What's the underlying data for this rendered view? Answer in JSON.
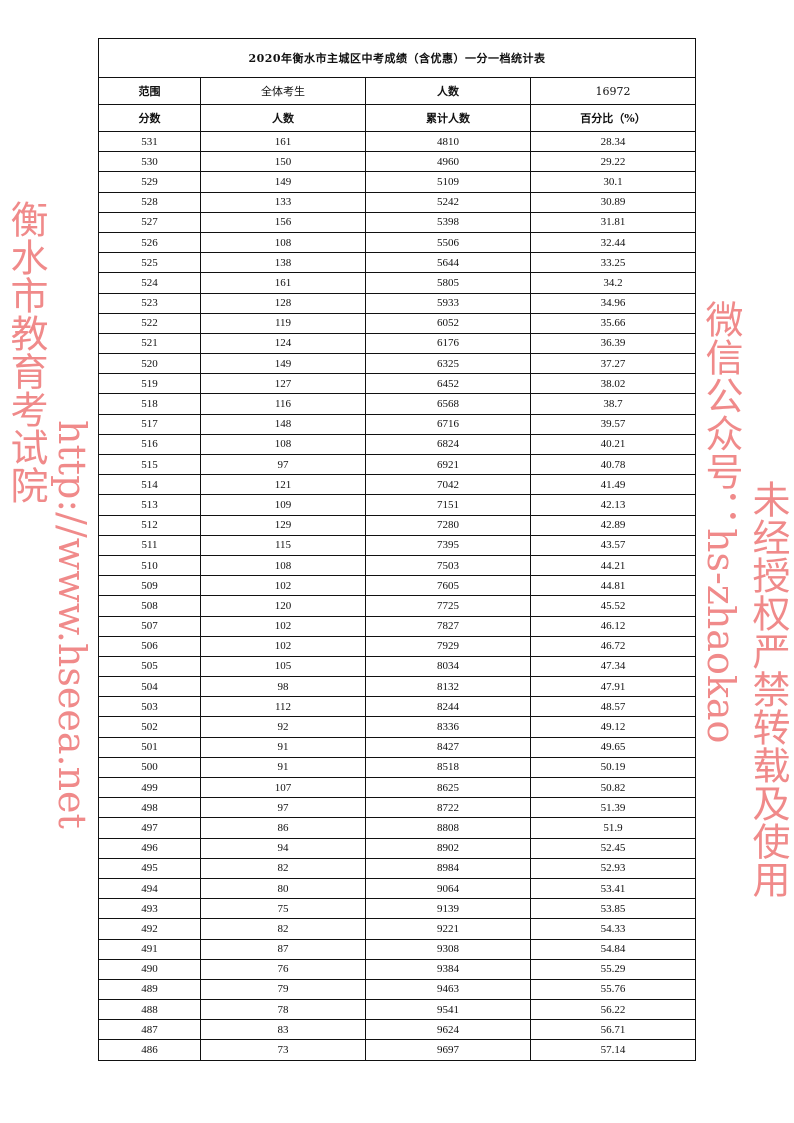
{
  "title": "2020年衡水市主城区中考成绩（含优惠）一分一档统计表",
  "summary": {
    "range_label": "范围",
    "range_value": "全体考生",
    "count_label": "人数",
    "count_value": "16972"
  },
  "columns": [
    "分数",
    "人数",
    "累计人数",
    "百分比（%）"
  ],
  "rows": [
    [
      "531",
      "161",
      "4810",
      "28.34"
    ],
    [
      "530",
      "150",
      "4960",
      "29.22"
    ],
    [
      "529",
      "149",
      "5109",
      "30.1"
    ],
    [
      "528",
      "133",
      "5242",
      "30.89"
    ],
    [
      "527",
      "156",
      "5398",
      "31.81"
    ],
    [
      "526",
      "108",
      "5506",
      "32.44"
    ],
    [
      "525",
      "138",
      "5644",
      "33.25"
    ],
    [
      "524",
      "161",
      "5805",
      "34.2"
    ],
    [
      "523",
      "128",
      "5933",
      "34.96"
    ],
    [
      "522",
      "119",
      "6052",
      "35.66"
    ],
    [
      "521",
      "124",
      "6176",
      "36.39"
    ],
    [
      "520",
      "149",
      "6325",
      "37.27"
    ],
    [
      "519",
      "127",
      "6452",
      "38.02"
    ],
    [
      "518",
      "116",
      "6568",
      "38.7"
    ],
    [
      "517",
      "148",
      "6716",
      "39.57"
    ],
    [
      "516",
      "108",
      "6824",
      "40.21"
    ],
    [
      "515",
      "97",
      "6921",
      "40.78"
    ],
    [
      "514",
      "121",
      "7042",
      "41.49"
    ],
    [
      "513",
      "109",
      "7151",
      "42.13"
    ],
    [
      "512",
      "129",
      "7280",
      "42.89"
    ],
    [
      "511",
      "115",
      "7395",
      "43.57"
    ],
    [
      "510",
      "108",
      "7503",
      "44.21"
    ],
    [
      "509",
      "102",
      "7605",
      "44.81"
    ],
    [
      "508",
      "120",
      "7725",
      "45.52"
    ],
    [
      "507",
      "102",
      "7827",
      "46.12"
    ],
    [
      "506",
      "102",
      "7929",
      "46.72"
    ],
    [
      "505",
      "105",
      "8034",
      "47.34"
    ],
    [
      "504",
      "98",
      "8132",
      "47.91"
    ],
    [
      "503",
      "112",
      "8244",
      "48.57"
    ],
    [
      "502",
      "92",
      "8336",
      "49.12"
    ],
    [
      "501",
      "91",
      "8427",
      "49.65"
    ],
    [
      "500",
      "91",
      "8518",
      "50.19"
    ],
    [
      "499",
      "107",
      "8625",
      "50.82"
    ],
    [
      "498",
      "97",
      "8722",
      "51.39"
    ],
    [
      "497",
      "86",
      "8808",
      "51.9"
    ],
    [
      "496",
      "94",
      "8902",
      "52.45"
    ],
    [
      "495",
      "82",
      "8984",
      "52.93"
    ],
    [
      "494",
      "80",
      "9064",
      "53.41"
    ],
    [
      "493",
      "75",
      "9139",
      "53.85"
    ],
    [
      "492",
      "82",
      "9221",
      "54.33"
    ],
    [
      "491",
      "87",
      "9308",
      "54.84"
    ],
    [
      "490",
      "76",
      "9384",
      "55.29"
    ],
    [
      "489",
      "79",
      "9463",
      "55.76"
    ],
    [
      "488",
      "78",
      "9541",
      "56.22"
    ],
    [
      "487",
      "83",
      "9624",
      "56.71"
    ],
    [
      "486",
      "73",
      "9697",
      "57.14"
    ]
  ],
  "watermark": {
    "lines": [
      "衡水市教育考试院",
      "http://www.hseea.net",
      "微信公众号：hs-zhaokao",
      "未经授权严禁转载及使用"
    ],
    "color": "#f08a8a"
  }
}
